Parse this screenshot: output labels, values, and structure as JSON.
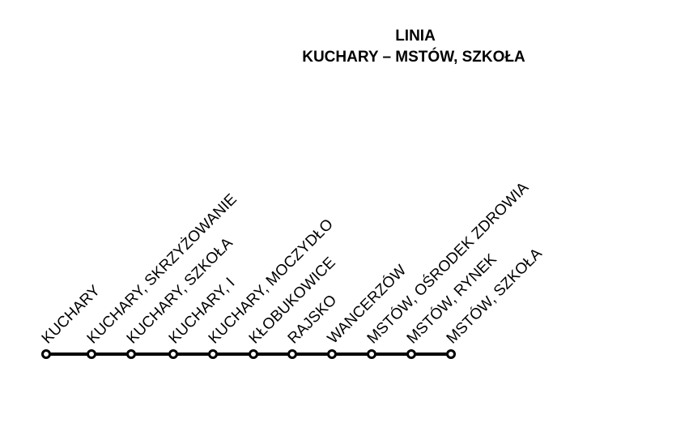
{
  "header": {
    "title": "LINIA",
    "route": "KUCHARY – MSTÓW, SZKOŁA"
  },
  "stops": [
    "KUCHARY",
    "KUCHARY, SKRZYŻOWANIE",
    "KUCHARY, SZKOŁA",
    "KUCHARY, I",
    "KUCHARY, MOCZYDŁO",
    "KŁOBUKOWICE",
    "RAJSKO",
    "WANCERZÓW",
    "MSTÓW, OŚRODEK ZDROWIA",
    "MSTÓW, RYNEK",
    "MSTÓW, SZKOŁA"
  ]
}
